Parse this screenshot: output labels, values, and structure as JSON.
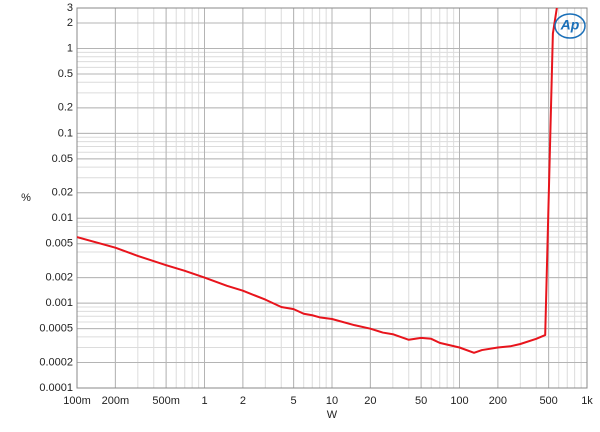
{
  "chart_data": {
    "type": "line",
    "logo": "Ap",
    "xlabel": "W",
    "ylabel": "%",
    "xscale": "log",
    "yscale": "log",
    "grid": true,
    "minor_grid": true,
    "xlim": [
      0.1,
      1000
    ],
    "ylim": [
      0.0001,
      3
    ],
    "xticks": [
      {
        "value": 0.1,
        "label": "100m"
      },
      {
        "value": 0.2,
        "label": "200m"
      },
      {
        "value": 0.5,
        "label": "500m"
      },
      1,
      2,
      5,
      10,
      20,
      50,
      100,
      200,
      500,
      {
        "value": 1000,
        "label": "1k"
      }
    ],
    "yticks": [
      0.0001,
      0.0002,
      0.0005,
      0.001,
      0.002,
      0.005,
      0.01,
      0.02,
      0.05,
      0.1,
      0.2,
      0.5,
      1,
      2,
      3
    ],
    "x": [
      0.1,
      0.2,
      0.3,
      0.5,
      0.7,
      1,
      1.5,
      2,
      3,
      4,
      5,
      6,
      7,
      8,
      10,
      15,
      20,
      25,
      30,
      40,
      50,
      60,
      70,
      100,
      130,
      150,
      200,
      250,
      300,
      400,
      470,
      540,
      580
    ],
    "series": [
      {
        "color": "#e8141c",
        "values": [
          0.006,
          0.0045,
          0.0036,
          0.0028,
          0.0024,
          0.002,
          0.0016,
          0.0014,
          0.0011,
          0.0009,
          0.00085,
          0.00075,
          0.00072,
          0.00068,
          0.00065,
          0.00055,
          0.0005,
          0.00045,
          0.00043,
          0.00037,
          0.00039,
          0.00038,
          0.00034,
          0.0003,
          0.00026,
          0.00028,
          0.0003,
          0.00031,
          0.00033,
          0.00038,
          0.00042,
          1.5,
          3
        ]
      }
    ]
  }
}
